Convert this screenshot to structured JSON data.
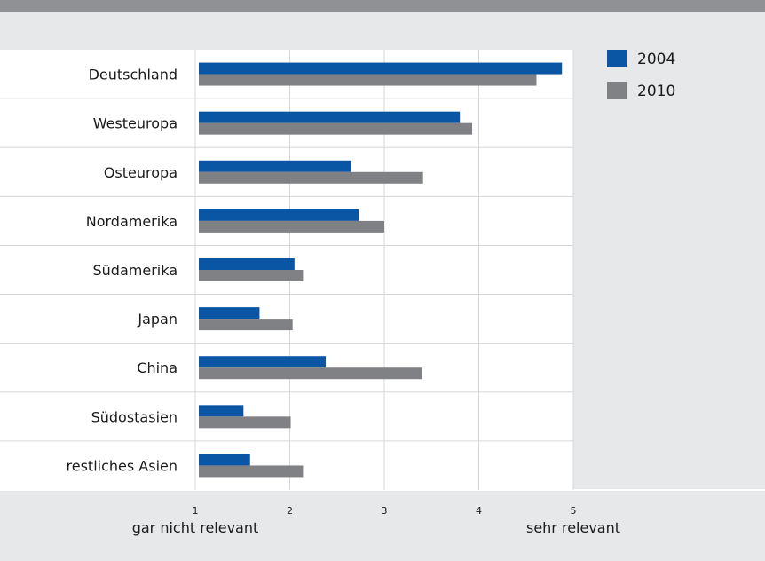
{
  "chart_data": {
    "type": "bar",
    "orientation": "horizontal",
    "categories": [
      "Deutschland",
      "Westeuropa",
      "Osteuropa",
      "Nordamerika",
      "Südamerika",
      "Japan",
      "China",
      "Südostasien",
      "restliches Asien"
    ],
    "series": [
      {
        "name": "2004",
        "color": "#0b55a5",
        "values": [
          4.88,
          3.8,
          2.65,
          2.73,
          2.05,
          1.68,
          2.38,
          1.51,
          1.58
        ]
      },
      {
        "name": "2010",
        "color": "#808184",
        "values": [
          4.61,
          3.93,
          3.41,
          3.0,
          2.14,
          2.03,
          3.4,
          2.01,
          2.14
        ]
      }
    ],
    "xlim": [
      1,
      5
    ],
    "xticks": [
      1,
      2,
      3,
      4,
      5
    ],
    "xtick_label_low": "gar nicht relevant",
    "xtick_label_high": "sehr relevant",
    "grid": true,
    "legend_position": "top-right"
  }
}
